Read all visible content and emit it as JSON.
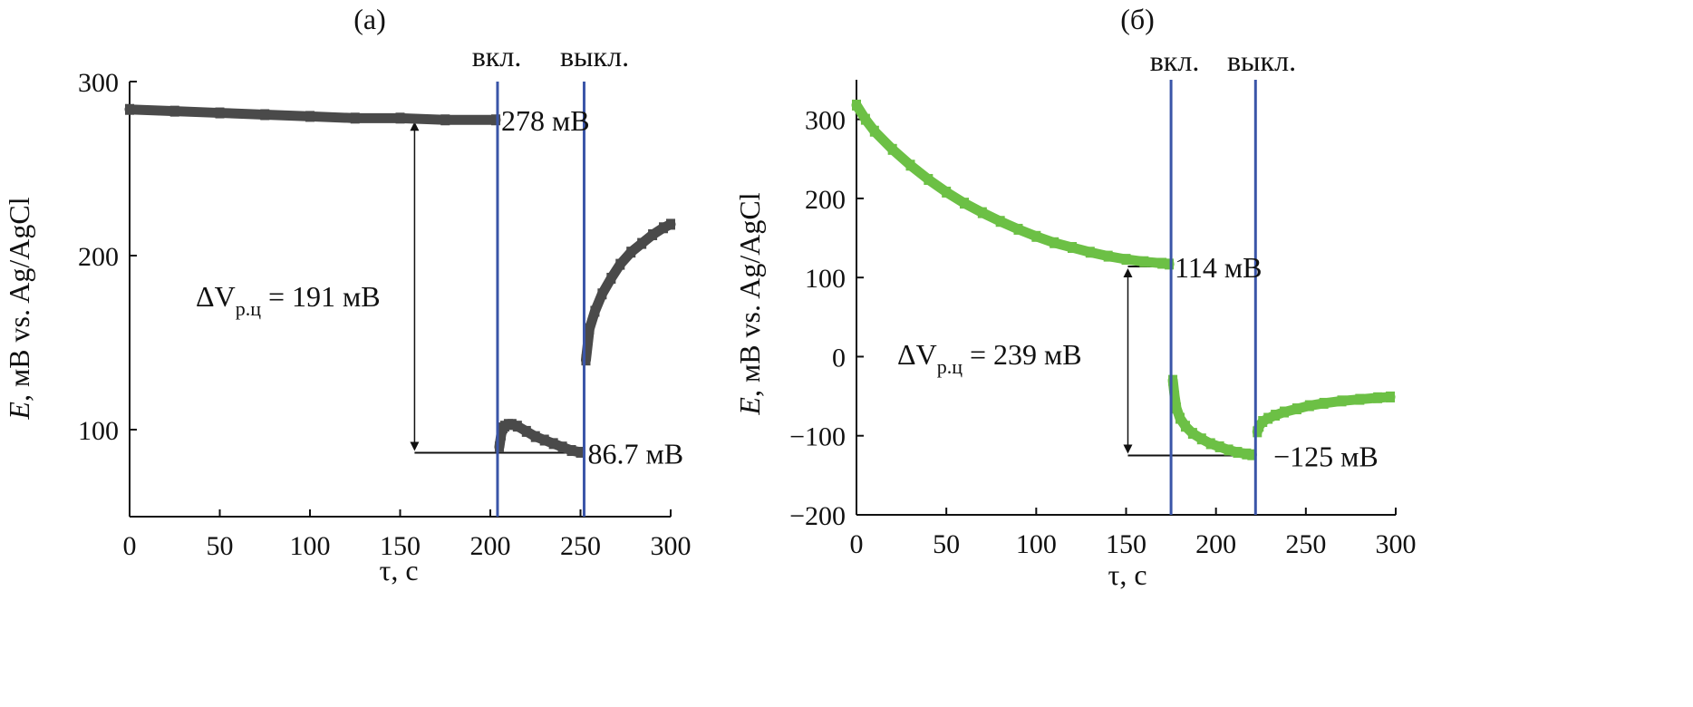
{
  "chart_data": [
    {
      "type": "scatter",
      "panel_label": "(а)",
      "xlabel": "τ, с",
      "ylabel": "E, мВ vs. Ag/AgCl",
      "ylabel_italic": "E",
      "ylabel_rest": ", мВ vs. Ag/AgCl",
      "xlim": [
        0,
        300
      ],
      "ylim": [
        50,
        300
      ],
      "xticks": [
        0,
        50,
        100,
        150,
        200,
        250,
        300
      ],
      "yticks": [
        100,
        200,
        300
      ],
      "color": "#4a4a4a",
      "marker_color": "#4a4a4a",
      "switch_color": "#3a55a8",
      "switch_on": {
        "x": 204,
        "label": "вкл."
      },
      "switch_off": {
        "x": 252,
        "label": "выкл."
      },
      "series": [
        {
          "name": "before",
          "x": [
            0,
            25,
            50,
            75,
            100,
            125,
            150,
            175,
            203
          ],
          "y": [
            284,
            283,
            282,
            281,
            280,
            279,
            279,
            278,
            278
          ]
        },
        {
          "name": "on",
          "x": [
            205,
            206,
            207,
            208,
            210,
            212,
            215,
            220,
            225,
            230,
            235,
            240,
            245,
            250
          ],
          "y": [
            90,
            97,
            101,
            102,
            103,
            103,
            102,
            99,
            96,
            94,
            92,
            90,
            88,
            87
          ]
        },
        {
          "name": "off",
          "x": [
            253,
            255,
            258,
            262,
            267,
            272,
            278,
            284,
            290,
            296,
            300
          ],
          "y": [
            140,
            158,
            168,
            178,
            187,
            195,
            202,
            207,
            212,
            216,
            218
          ]
        }
      ],
      "annotations": [
        {
          "text": "278 мВ",
          "x": 206,
          "y": 278
        },
        {
          "text": "86.7 мВ",
          "x": 254,
          "y": 86.7
        }
      ],
      "delta": {
        "prefix": "ΔV",
        "subscript": "р.ц",
        "suffix": " = 191 мВ",
        "value": 191,
        "x": 158,
        "y_top": 278,
        "y_bottom": 86.7
      },
      "ref_lines": [
        278,
        86.7
      ]
    },
    {
      "type": "scatter",
      "panel_label": "(б)",
      "xlabel": "τ, с",
      "ylabel": "E, мВ vs. Ag/AgCl",
      "ylabel_italic": "E",
      "ylabel_rest": ", мВ vs. Ag/AgCl",
      "xlim": [
        0,
        300
      ],
      "ylim": [
        -200,
        350
      ],
      "xticks": [
        0,
        50,
        100,
        150,
        200,
        250,
        300
      ],
      "yticks": [
        -200,
        -100,
        0,
        100,
        200,
        300
      ],
      "ytick_labels": [
        "−200",
        "−100",
        "0",
        "100",
        "200",
        "300"
      ],
      "color": "#6cc045",
      "marker_color": "#6cc045",
      "switch_color": "#3a55a8",
      "switch_on": {
        "x": 175,
        "label": "вкл."
      },
      "switch_off": {
        "x": 222,
        "label": "выкл."
      },
      "series": [
        {
          "name": "before",
          "x": [
            0,
            5,
            10,
            20,
            30,
            40,
            50,
            60,
            70,
            80,
            90,
            100,
            110,
            120,
            130,
            140,
            150,
            160,
            170,
            174
          ],
          "y": [
            318,
            300,
            285,
            262,
            242,
            224,
            208,
            194,
            182,
            171,
            161,
            152,
            144,
            138,
            132,
            127,
            123,
            120,
            118,
            117
          ]
        },
        {
          "name": "on",
          "x": [
            176,
            177,
            178,
            180,
            183,
            187,
            192,
            197,
            202,
            207,
            212,
            217,
            220
          ],
          "y": [
            -30,
            -50,
            -65,
            -78,
            -88,
            -97,
            -104,
            -110,
            -114,
            -118,
            -121,
            -123,
            -124
          ]
        },
        {
          "name": "off",
          "x": [
            223,
            224,
            226,
            229,
            233,
            238,
            245,
            252,
            260,
            270,
            280,
            290,
            297
          ],
          "y": [
            -95,
            -88,
            -82,
            -78,
            -74,
            -70,
            -66,
            -62,
            -59,
            -56,
            -54,
            -52,
            -51
          ]
        }
      ],
      "annotations": [
        {
          "text": "114 мВ",
          "x": 177,
          "y": 114
        },
        {
          "text": "−125 мВ",
          "x": 232,
          "y": -125
        }
      ],
      "delta": {
        "prefix": "ΔV",
        "subscript": "р.ц",
        "suffix": " = 239 мВ",
        "value": 239,
        "x": 151,
        "y_top": 114,
        "y_bottom": -125
      },
      "ref_lines": [
        114,
        -125
      ]
    }
  ]
}
